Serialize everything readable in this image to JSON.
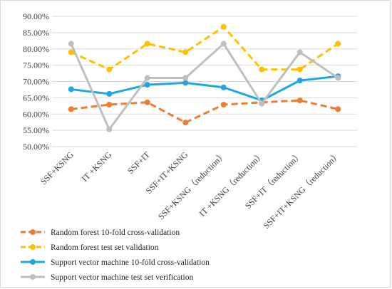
{
  "chart_data": {
    "type": "line",
    "title": "",
    "xlabel": "",
    "ylabel": "",
    "ylim": [
      0.5,
      0.9
    ],
    "y_tick_step": 0.05,
    "y_ticks": [
      "50.00%",
      "55.00%",
      "60.00%",
      "65.00%",
      "70.00%",
      "75.00%",
      "80.00%",
      "85.00%",
      "90.00%"
    ],
    "grid": "horizontal",
    "legend_position": "bottom-left",
    "categories": [
      "SSF+KSNG",
      "IT +KSNG",
      "SSF+IT",
      "SSF+IT+KSNG",
      "SSF+KSNG（reduction）",
      "IT +KSNG（reduction）",
      "SSF+IT（reduction）",
      "SSF+IT+KSNG（reduction）"
    ],
    "series": [
      {
        "name": "Random forest 10-fold cross-validation",
        "color": "#ED7D31",
        "dashed": true,
        "width": 3,
        "values": [
          0.615,
          0.629,
          0.636,
          0.574,
          0.629,
          0.636,
          0.642,
          0.615
        ]
      },
      {
        "name": "Random forest test set validation",
        "color": "#FFC000",
        "dashed": true,
        "width": 3,
        "values": [
          0.79,
          0.737,
          0.816,
          0.79,
          0.868,
          0.737,
          0.737,
          0.816
        ]
      },
      {
        "name": "Support vector machine 10-fold cross-validation",
        "color": "#1EA7E1",
        "dashed": false,
        "width": 3,
        "values": [
          0.676,
          0.662,
          0.69,
          0.696,
          0.682,
          0.642,
          0.703,
          0.716
        ]
      },
      {
        "name": "Support vector machine test set verification",
        "color": "#BFBFBF",
        "dashed": false,
        "width": 3,
        "values": [
          0.816,
          0.553,
          0.711,
          0.711,
          0.816,
          0.632,
          0.79,
          0.711
        ]
      }
    ]
  }
}
